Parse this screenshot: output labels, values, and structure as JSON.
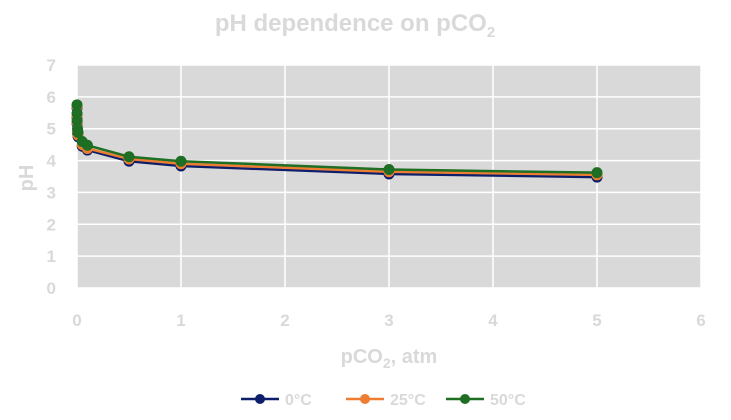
{
  "chart_data": {
    "type": "scatter",
    "title": "pH dependence on pCO",
    "title_subscript": "2",
    "xlabel_main": "pCO",
    "xlabel_subscript": "2",
    "xlabel_suffix": ", atm",
    "ylabel": "pH",
    "xlim": [
      0,
      6
    ],
    "ylim": [
      0,
      7
    ],
    "xticks": [
      0,
      1,
      2,
      3,
      4,
      5,
      6
    ],
    "yticks": [
      0,
      1,
      2,
      3,
      4,
      5,
      6,
      7
    ],
    "grid": true,
    "legend_position": "bottom",
    "series": [
      {
        "name": "0°C",
        "color": "#0d1f6b",
        "x": [
          0.0001,
          0.0004,
          0.001,
          0.005,
          0.01,
          0.05,
          0.1,
          0.5,
          1,
          3,
          5
        ],
        "y": [
          5.65,
          5.35,
          5.15,
          4.85,
          4.75,
          4.45,
          4.33,
          3.98,
          3.83,
          3.58,
          3.48
        ]
      },
      {
        "name": "25°C",
        "color": "#ed7d31",
        "x": [
          0.0001,
          0.0004,
          0.001,
          0.005,
          0.01,
          0.05,
          0.1,
          0.5,
          1,
          3,
          5
        ],
        "y": [
          5.7,
          5.4,
          5.2,
          4.9,
          4.8,
          4.5,
          4.38,
          4.05,
          3.9,
          3.65,
          3.55
        ]
      },
      {
        "name": "50°C",
        "color": "#1e6e23",
        "x": [
          0.0001,
          0.0004,
          0.001,
          0.005,
          0.01,
          0.05,
          0.1,
          0.5,
          1,
          3,
          5
        ],
        "y": [
          5.75,
          5.48,
          5.25,
          5.0,
          4.88,
          4.6,
          4.48,
          4.12,
          3.98,
          3.72,
          3.62
        ]
      }
    ]
  }
}
